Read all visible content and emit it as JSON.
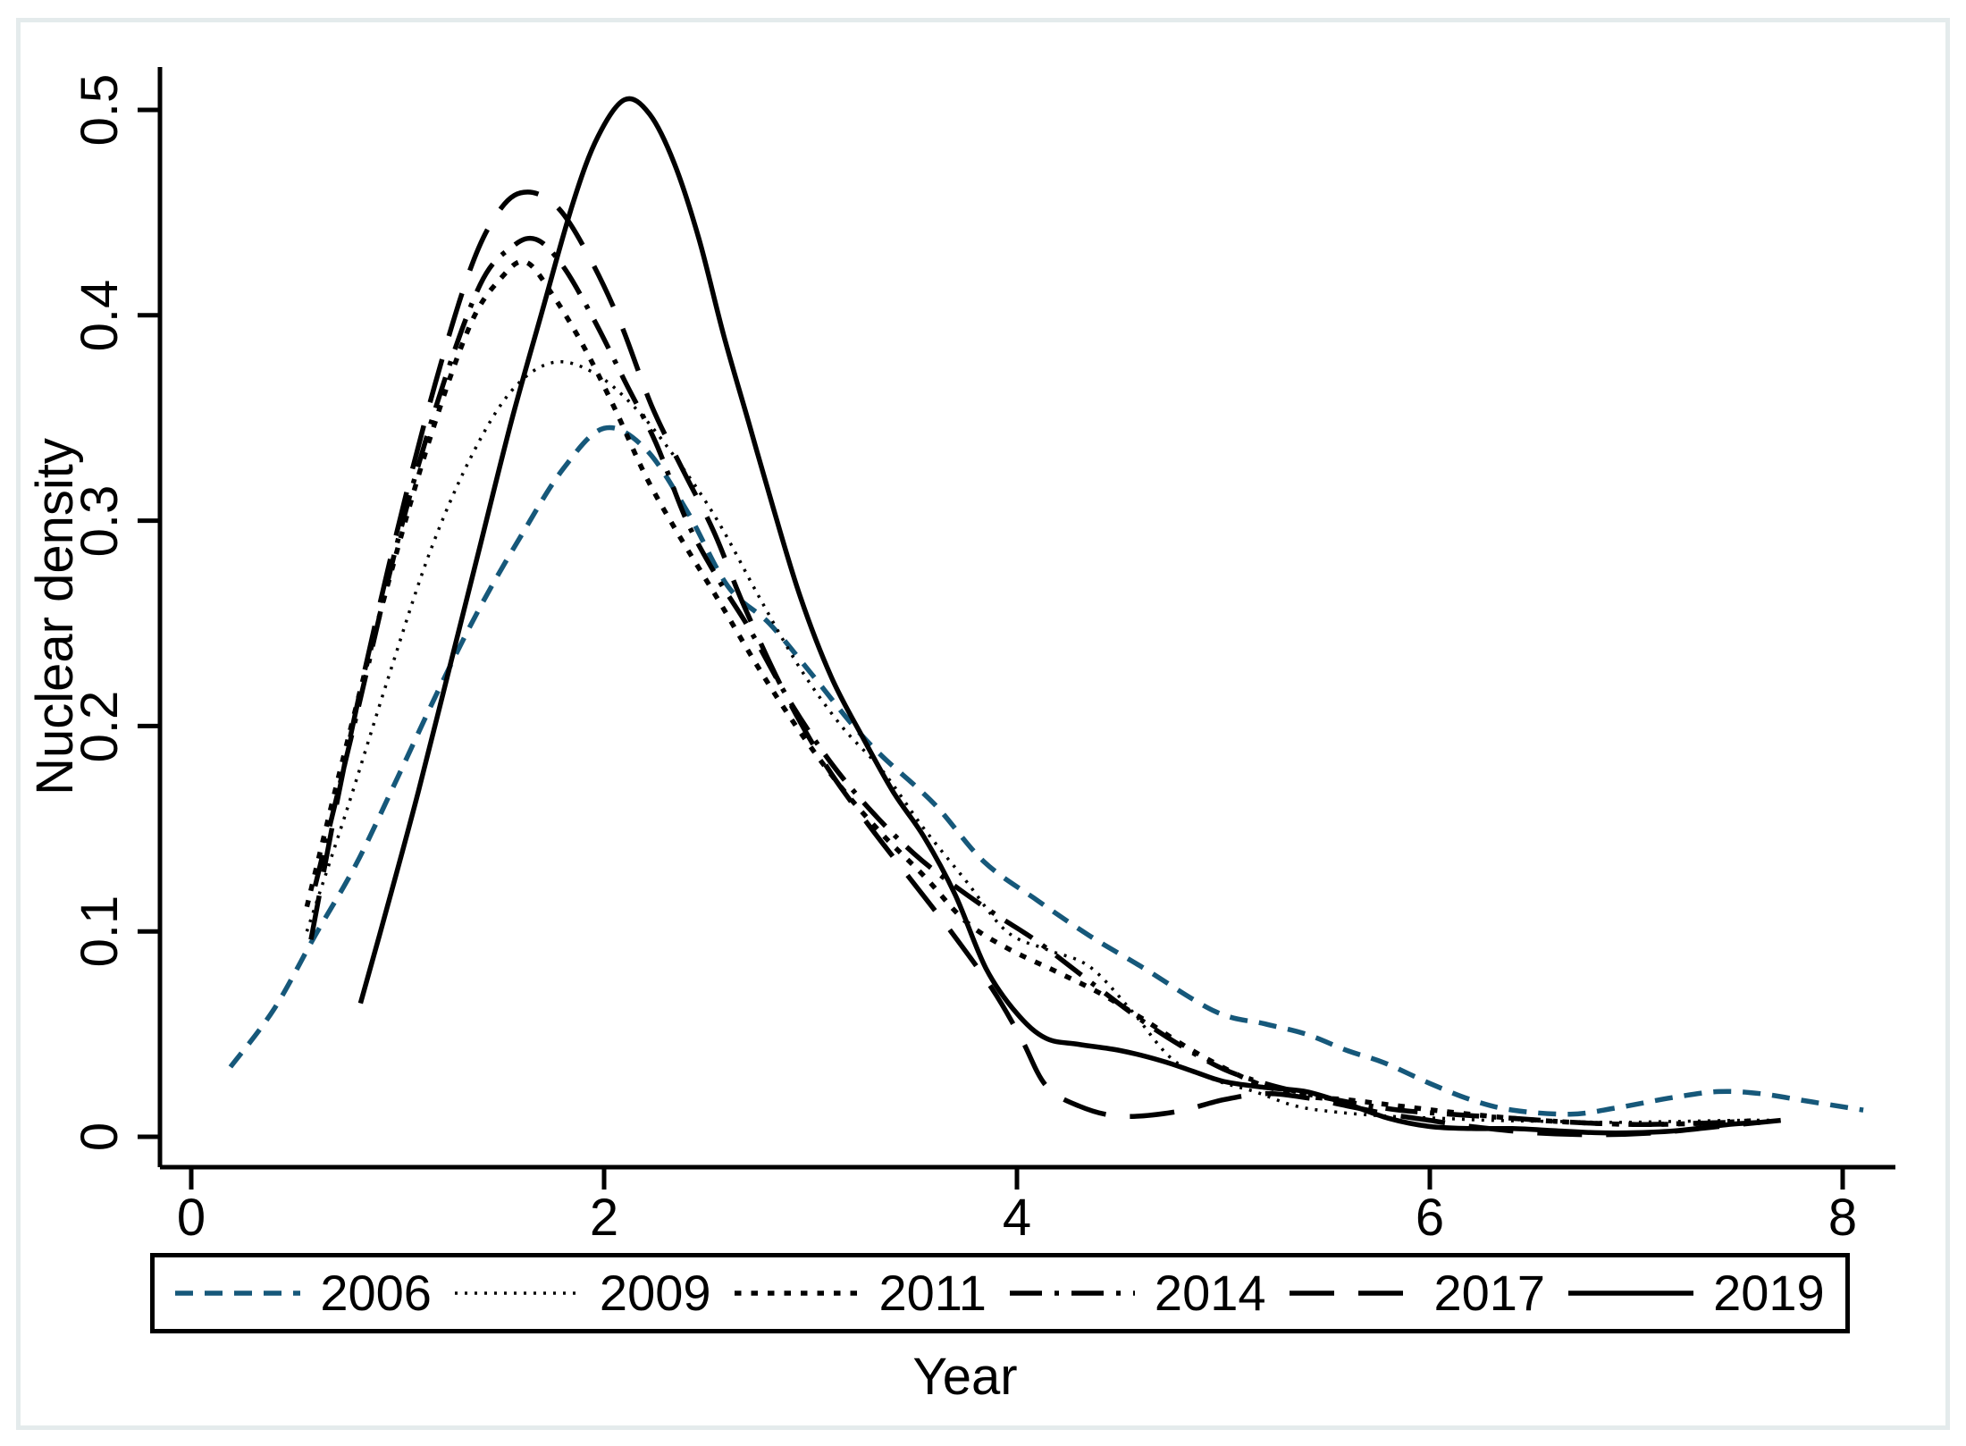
{
  "figure": {
    "x_title": "Year",
    "y_title": "Nuclear density"
  },
  "axes": {
    "x": {
      "ticks": [
        {
          "value": 0,
          "label": "0"
        },
        {
          "value": 2,
          "label": "2"
        },
        {
          "value": 4,
          "label": "4"
        },
        {
          "value": 6,
          "label": "6"
        },
        {
          "value": 8,
          "label": "8"
        }
      ]
    },
    "y": {
      "ticks": [
        {
          "value": 0,
          "label": "0"
        },
        {
          "value": 0.1,
          "label": "0.1"
        },
        {
          "value": 0.2,
          "label": "0.2"
        },
        {
          "value": 0.3,
          "label": "0.3"
        },
        {
          "value": 0.4,
          "label": "0.4"
        },
        {
          "value": 0.5,
          "label": "0.5"
        }
      ]
    }
  },
  "colors": {
    "accent_blue": "#16587a",
    "line_black": "#000000",
    "frame_border": "#e4ebec",
    "legend_border": "#000000",
    "background": "#ffffff"
  },
  "chart_data": {
    "type": "line",
    "title": "",
    "xlabel": "Year",
    "ylabel": "Nuclear density",
    "xlim": [
      0,
      8.2
    ],
    "ylim": [
      0,
      0.5
    ],
    "grid": false,
    "legend_position": "bottom",
    "series": [
      {
        "name": "2006",
        "color": "#16587a",
        "dash": "20 13",
        "width": 5.5,
        "points": [
          [
            0.19,
            0.034
          ],
          [
            0.4,
            0.062
          ],
          [
            0.6,
            0.098
          ],
          [
            0.8,
            0.133
          ],
          [
            1.0,
            0.175
          ],
          [
            1.2,
            0.218
          ],
          [
            1.4,
            0.258
          ],
          [
            1.6,
            0.293
          ],
          [
            1.8,
            0.325
          ],
          [
            2.0,
            0.345
          ],
          [
            2.2,
            0.335
          ],
          [
            2.4,
            0.305
          ],
          [
            2.6,
            0.268
          ],
          [
            2.8,
            0.25
          ],
          [
            3.0,
            0.226
          ],
          [
            3.2,
            0.201
          ],
          [
            3.35,
            0.185
          ],
          [
            3.6,
            0.162
          ],
          [
            3.84,
            0.134
          ],
          [
            4.1,
            0.115
          ],
          [
            4.35,
            0.098
          ],
          [
            4.6,
            0.083
          ],
          [
            4.96,
            0.061
          ],
          [
            5.2,
            0.055
          ],
          [
            5.4,
            0.05
          ],
          [
            5.6,
            0.042
          ],
          [
            5.78,
            0.036
          ],
          [
            6.0,
            0.026
          ],
          [
            6.2,
            0.018
          ],
          [
            6.4,
            0.013
          ],
          [
            6.68,
            0.011
          ],
          [
            6.9,
            0.014
          ],
          [
            7.17,
            0.019
          ],
          [
            7.4,
            0.022
          ],
          [
            7.6,
            0.021
          ],
          [
            7.85,
            0.017
          ],
          [
            8.1,
            0.013
          ]
        ]
      },
      {
        "name": "2009",
        "color": "#000000",
        "dash": "3 8",
        "width": 3.5,
        "points": [
          [
            0.56,
            0.1
          ],
          [
            0.75,
            0.158
          ],
          [
            0.95,
            0.222
          ],
          [
            1.15,
            0.283
          ],
          [
            1.35,
            0.33
          ],
          [
            1.55,
            0.363
          ],
          [
            1.75,
            0.377
          ],
          [
            1.95,
            0.372
          ],
          [
            2.15,
            0.355
          ],
          [
            2.35,
            0.33
          ],
          [
            2.55,
            0.3
          ],
          [
            2.75,
            0.263
          ],
          [
            2.95,
            0.228
          ],
          [
            3.15,
            0.2
          ],
          [
            3.35,
            0.178
          ],
          [
            3.55,
            0.15
          ],
          [
            3.75,
            0.125
          ],
          [
            3.95,
            0.1
          ],
          [
            4.15,
            0.091
          ],
          [
            4.35,
            0.083
          ],
          [
            4.55,
            0.062
          ],
          [
            4.75,
            0.038
          ],
          [
            4.95,
            0.028
          ],
          [
            5.15,
            0.022
          ],
          [
            5.35,
            0.015
          ],
          [
            5.55,
            0.012
          ],
          [
            5.8,
            0.01
          ],
          [
            6.05,
            0.009
          ],
          [
            6.3,
            0.008
          ],
          [
            6.6,
            0.0075
          ],
          [
            6.9,
            0.007
          ],
          [
            7.2,
            0.0075
          ],
          [
            7.5,
            0.008
          ],
          [
            7.7,
            0.008
          ]
        ]
      },
      {
        "name": "2011",
        "color": "#000000",
        "dash": "7.5 11",
        "width": 5.5,
        "points": [
          [
            0.56,
            0.112
          ],
          [
            0.75,
            0.19
          ],
          [
            0.95,
            0.268
          ],
          [
            1.15,
            0.338
          ],
          [
            1.35,
            0.395
          ],
          [
            1.5,
            0.418
          ],
          [
            1.62,
            0.426
          ],
          [
            1.75,
            0.41
          ],
          [
            1.9,
            0.385
          ],
          [
            2.05,
            0.355
          ],
          [
            2.2,
            0.322
          ],
          [
            2.35,
            0.295
          ],
          [
            2.55,
            0.262
          ],
          [
            2.75,
            0.228
          ],
          [
            2.95,
            0.197
          ],
          [
            3.15,
            0.17
          ],
          [
            3.35,
            0.147
          ],
          [
            3.55,
            0.127
          ],
          [
            3.75,
            0.105
          ],
          [
            3.95,
            0.092
          ],
          [
            4.2,
            0.08
          ],
          [
            4.4,
            0.07
          ],
          [
            4.6,
            0.058
          ],
          [
            4.85,
            0.042
          ],
          [
            5.14,
            0.027
          ],
          [
            5.38,
            0.02
          ],
          [
            5.6,
            0.018
          ],
          [
            5.85,
            0.015
          ],
          [
            6.1,
            0.012
          ],
          [
            6.4,
            0.009
          ],
          [
            6.7,
            0.007
          ],
          [
            7.0,
            0.006
          ],
          [
            7.3,
            0.0065
          ],
          [
            7.6,
            0.008
          ]
        ]
      },
      {
        "name": "2014",
        "color": "#000000",
        "dash": "36 14 5 14",
        "width": 5.5,
        "points": [
          [
            0.6,
            0.122
          ],
          [
            0.8,
            0.205
          ],
          [
            1.0,
            0.29
          ],
          [
            1.2,
            0.36
          ],
          [
            1.4,
            0.415
          ],
          [
            1.55,
            0.433
          ],
          [
            1.67,
            0.437
          ],
          [
            1.8,
            0.424
          ],
          [
            1.95,
            0.398
          ],
          [
            2.1,
            0.368
          ],
          [
            2.25,
            0.338
          ],
          [
            2.4,
            0.3
          ],
          [
            2.55,
            0.272
          ],
          [
            2.7,
            0.248
          ],
          [
            2.9,
            0.212
          ],
          [
            3.1,
            0.182
          ],
          [
            3.3,
            0.158
          ],
          [
            3.5,
            0.138
          ],
          [
            3.7,
            0.122
          ],
          [
            3.9,
            0.108
          ],
          [
            4.1,
            0.095
          ],
          [
            4.38,
            0.0735
          ],
          [
            4.6,
            0.057
          ],
          [
            4.8,
            0.044
          ],
          [
            5.0,
            0.033
          ],
          [
            5.2,
            0.026
          ],
          [
            5.4,
            0.021
          ],
          [
            5.6,
            0.017
          ],
          [
            5.85,
            0.013
          ],
          [
            6.1,
            0.011
          ],
          [
            6.4,
            0.009
          ],
          [
            6.7,
            0.007
          ],
          [
            7.0,
            0.006
          ],
          [
            7.25,
            0.0065
          ],
          [
            7.45,
            0.007
          ]
        ]
      },
      {
        "name": "2017",
        "color": "#000000",
        "dash": "50 27",
        "width": 5.5,
        "points": [
          [
            0.58,
            0.096
          ],
          [
            0.75,
            0.185
          ],
          [
            0.95,
            0.275
          ],
          [
            1.15,
            0.355
          ],
          [
            1.35,
            0.422
          ],
          [
            1.5,
            0.452
          ],
          [
            1.63,
            0.46
          ],
          [
            1.78,
            0.452
          ],
          [
            1.93,
            0.428
          ],
          [
            2.08,
            0.396
          ],
          [
            2.23,
            0.356
          ],
          [
            2.38,
            0.325
          ],
          [
            2.53,
            0.295
          ],
          [
            2.68,
            0.258
          ],
          [
            2.88,
            0.215
          ],
          [
            3.08,
            0.18
          ],
          [
            3.28,
            0.152
          ],
          [
            3.48,
            0.126
          ],
          [
            3.68,
            0.1
          ],
          [
            3.88,
            0.072
          ],
          [
            4.02,
            0.048
          ],
          [
            4.14,
            0.025
          ],
          [
            4.3,
            0.015
          ],
          [
            4.5,
            0.01
          ],
          [
            4.76,
            0.012
          ],
          [
            5.0,
            0.018
          ],
          [
            5.2,
            0.021
          ],
          [
            5.4,
            0.019
          ],
          [
            5.6,
            0.015
          ],
          [
            5.8,
            0.011
          ],
          [
            6.0,
            0.008
          ],
          [
            6.2,
            0.005
          ],
          [
            6.5,
            0.002
          ],
          [
            6.8,
            0.001
          ],
          [
            7.1,
            0.002
          ],
          [
            7.4,
            0.005
          ],
          [
            7.7,
            0.008
          ]
        ]
      },
      {
        "name": "2019",
        "color": "#000000",
        "dash": "",
        "width": 5.5,
        "points": [
          [
            0.82,
            0.065
          ],
          [
            0.95,
            0.112
          ],
          [
            1.1,
            0.168
          ],
          [
            1.25,
            0.228
          ],
          [
            1.4,
            0.288
          ],
          [
            1.55,
            0.348
          ],
          [
            1.7,
            0.402
          ],
          [
            1.85,
            0.455
          ],
          [
            1.97,
            0.487
          ],
          [
            2.1,
            0.505
          ],
          [
            2.22,
            0.498
          ],
          [
            2.34,
            0.474
          ],
          [
            2.46,
            0.437
          ],
          [
            2.58,
            0.39
          ],
          [
            2.7,
            0.348
          ],
          [
            2.82,
            0.306
          ],
          [
            2.95,
            0.263
          ],
          [
            3.1,
            0.224
          ],
          [
            3.25,
            0.195
          ],
          [
            3.4,
            0.168
          ],
          [
            3.55,
            0.146
          ],
          [
            3.7,
            0.118
          ],
          [
            3.85,
            0.082
          ],
          [
            4.0,
            0.06
          ],
          [
            4.14,
            0.048
          ],
          [
            4.3,
            0.045
          ],
          [
            4.5,
            0.042
          ],
          [
            4.7,
            0.037
          ],
          [
            4.85,
            0.032
          ],
          [
            5.0,
            0.027
          ],
          [
            5.2,
            0.024
          ],
          [
            5.4,
            0.022
          ],
          [
            5.6,
            0.016
          ],
          [
            5.8,
            0.009
          ],
          [
            6.0,
            0.005
          ],
          [
            6.2,
            0.004
          ],
          [
            6.4,
            0.004
          ],
          [
            6.6,
            0.003
          ],
          [
            6.8,
            0.002
          ],
          [
            7.0,
            0.002
          ],
          [
            7.2,
            0.003
          ],
          [
            7.45,
            0.006
          ],
          [
            7.6,
            0.007
          ]
        ]
      }
    ]
  }
}
